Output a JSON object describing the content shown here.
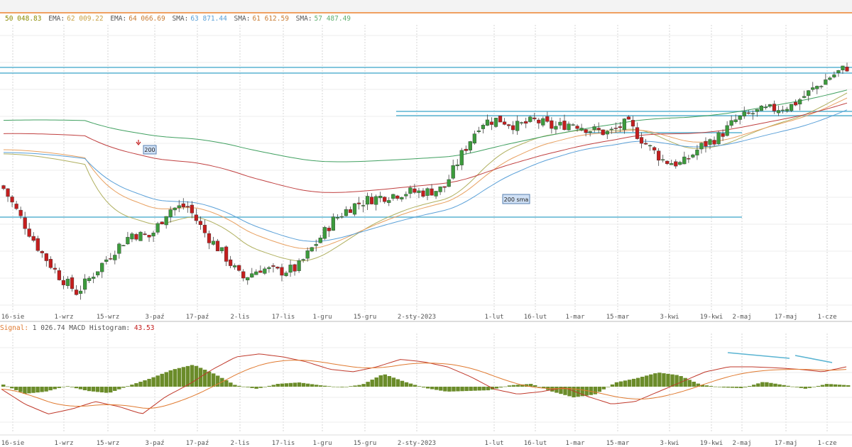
{
  "top_legend": [
    {
      "label": "",
      "value": "50 048.83",
      "color": "#8c8c00"
    },
    {
      "label": "EMA:",
      "value": "62 009.22",
      "color": "#c8a040"
    },
    {
      "label": "EMA:",
      "value": "64 066.69",
      "color": "#c87a30"
    },
    {
      "label": "SMA:",
      "value": "63 871.44",
      "color": "#5aa0d8"
    },
    {
      "label": "SMA:",
      "value": "61 612.59",
      "color": "#c87a30"
    },
    {
      "label": "SMA:",
      "value": "57 487.49",
      "color": "#60b070"
    }
  ],
  "macd_legend": {
    "signal_label": "Signal:",
    "signal_value": "1 026.74",
    "hist_label": "MACD Histogram:",
    "hist_value": "43.53"
  },
  "annotations": {
    "sma_top": "200",
    "sma_bottom": "200 sma"
  },
  "colors": {
    "up": "#3c9b3c",
    "down": "#c41e1e",
    "hist": "#6b8c2a",
    "level": "#5ab4d2",
    "macd": "#c0392b",
    "signal": "#e07a30"
  },
  "chart_data": {
    "type": "candlestick",
    "x_labels": [
      "16-sie",
      "1-wrz",
      "15-wrz",
      "3-paź",
      "17-paź",
      "2-lis",
      "17-lis",
      "1-gru",
      "15-gru",
      "2-sty-2023",
      "1-lut",
      "16-lut",
      "1-mar",
      "15-mar",
      "3-kwi",
      "19-kwi",
      "2-maj",
      "17-maj",
      "1-cze"
    ],
    "price_anchor_closes": [
      52.0,
      47.5,
      43.0,
      39.5,
      37.0,
      40.0,
      43.0,
      45.5,
      45.0,
      49.0,
      49.5,
      45.5,
      42.5,
      39.0,
      40.5,
      40.0,
      40.5,
      44.0,
      47.5,
      49.5,
      50.5,
      51.0,
      51.5,
      51.5,
      52.0,
      57.0,
      61.5,
      62.0,
      61.0,
      61.8,
      60.8,
      61.5,
      60.5,
      60.0,
      61.5,
      58.5,
      56.0,
      55.5,
      58.0,
      59.5,
      62.0,
      63.0,
      63.5,
      64.0,
      66.0,
      68.0,
      69.5
    ],
    "horizontal_levels": [
      {
        "y": 95,
        "x_from": 0,
        "x_to": 1200
      },
      {
        "y": 103,
        "x_from": 0,
        "x_to": 1200
      },
      {
        "y": 157,
        "x_from": 558,
        "x_to": 1200
      },
      {
        "y": 163,
        "x_from": 558,
        "x_to": 1200
      },
      {
        "y": 187,
        "x_from": 825,
        "x_to": 1045
      },
      {
        "y": 306,
        "x_from": 0,
        "x_to": 1045
      }
    ],
    "series": [
      {
        "name": "EMA",
        "color": "#b0b060"
      },
      {
        "name": "EMA",
        "color": "#e8a060"
      },
      {
        "name": "SMA",
        "color": "#5aa0d8"
      },
      {
        "name": "SMA",
        "color": "#c04040"
      },
      {
        "name": "SMA",
        "color": "#40a060"
      }
    ],
    "macd_panel": {
      "histogram_anchor_values": [
        0.3,
        -1.0,
        -0.7,
        0.1,
        -0.6,
        -0.9,
        0.2,
        1.2,
        2.4,
        3.1,
        1.8,
        0.2,
        -0.3,
        0.4,
        0.6,
        0.2,
        -0.1,
        0.3,
        1.8,
        0.7,
        -0.2,
        -0.7,
        -0.6,
        -0.5,
        0.2,
        0.4,
        -0.7,
        -1.5,
        -1.1,
        0.6,
        1.2,
        2.0,
        1.6,
        0.3,
        -0.1,
        -0.2,
        0.7,
        0.2,
        -0.3,
        0.4,
        0.2
      ],
      "macd_anchor_values": [
        -0.5,
        -3.5,
        -5.5,
        -4.5,
        -3.0,
        -4.0,
        -5.5,
        -2.0,
        0.5,
        3.5,
        6.0,
        6.6,
        6.0,
        5.0,
        3.5,
        3.0,
        4.0,
        5.5,
        5.0,
        4.0,
        2.0,
        -0.5,
        -1.5,
        -1.0,
        -0.2,
        -2.0,
        -3.5,
        -3.0,
        -1.0,
        1.0,
        3.0,
        4.0,
        4.0,
        3.8,
        3.5,
        3.0,
        4.0
      ]
    }
  }
}
